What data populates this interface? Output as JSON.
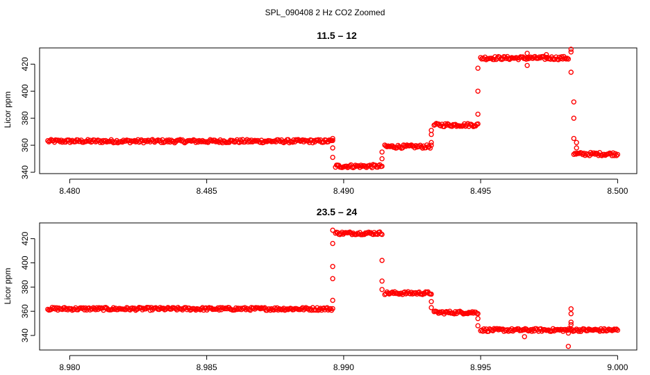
{
  "page_title": "SPL_090408  2 Hz CO2 Zoomed",
  "colors": {
    "points": "#ff0000",
    "axes": "#000000",
    "background": "#ffffff"
  },
  "chart_data": [
    {
      "type": "scatter",
      "title": "11.5 – 12",
      "xlabel": "",
      "ylabel": "Licor ppm",
      "xlim": [
        8.479,
        8.5
      ],
      "ylim": [
        340,
        432
      ],
      "x_ticks": [
        8.48,
        8.485,
        8.49,
        8.495,
        8.5
      ],
      "x_tick_labels": [
        "8.480",
        "8.485",
        "8.490",
        "8.495",
        "8.500"
      ],
      "y_ticks": [
        340,
        360,
        380,
        400,
        420
      ],
      "y_tick_labels": [
        "340",
        "360",
        "380",
        "400",
        "420"
      ],
      "grid": false,
      "segments": [
        {
          "x_start": 8.4792,
          "x_end": 8.4896,
          "y": 363
        },
        {
          "x_start": 8.4897,
          "x_end": 8.4914,
          "y": 344.5
        },
        {
          "x_start": 8.4915,
          "x_end": 8.4932,
          "y": 359
        },
        {
          "x_start": 8.4933,
          "x_end": 8.4949,
          "y": 375
        },
        {
          "x_start": 8.495,
          "x_end": 8.4982,
          "y": 424.5
        },
        {
          "x_start": 8.4984,
          "x_end": 8.5,
          "y": 353.5
        }
      ],
      "transition_points": [
        {
          "x": 8.4896,
          "y": 365
        },
        {
          "x": 8.4896,
          "y": 358
        },
        {
          "x": 8.4896,
          "y": 351
        },
        {
          "x": 8.4914,
          "y": 350
        },
        {
          "x": 8.4914,
          "y": 355
        },
        {
          "x": 8.4932,
          "y": 362
        },
        {
          "x": 8.4932,
          "y": 368
        },
        {
          "x": 8.4932,
          "y": 371
        },
        {
          "x": 8.4949,
          "y": 383
        },
        {
          "x": 8.4949,
          "y": 400
        },
        {
          "x": 8.4949,
          "y": 417
        },
        {
          "x": 8.4967,
          "y": 419
        },
        {
          "x": 8.4967,
          "y": 428
        },
        {
          "x": 8.4974,
          "y": 427
        },
        {
          "x": 8.4983,
          "y": 431
        },
        {
          "x": 8.4983,
          "y": 429
        },
        {
          "x": 8.4983,
          "y": 414
        },
        {
          "x": 8.4984,
          "y": 392
        },
        {
          "x": 8.4984,
          "y": 380
        },
        {
          "x": 8.4984,
          "y": 365
        },
        {
          "x": 8.4985,
          "y": 362
        },
        {
          "x": 8.4985,
          "y": 358
        }
      ]
    },
    {
      "type": "scatter",
      "title": "23.5 – 24",
      "xlabel": "",
      "ylabel": "Licor ppm",
      "xlim": [
        8.979,
        9.0
      ],
      "ylim": [
        330,
        432
      ],
      "x_ticks": [
        8.98,
        8.985,
        8.99,
        8.995,
        9.0
      ],
      "x_tick_labels": [
        "8.980",
        "8.985",
        "8.990",
        "8.995",
        "9.000"
      ],
      "y_ticks": [
        340,
        360,
        380,
        400,
        420
      ],
      "y_tick_labels": [
        "340",
        "360",
        "380",
        "400",
        "420"
      ],
      "grid": false,
      "segments": [
        {
          "x_start": 8.9792,
          "x_end": 8.9896,
          "y": 362
        },
        {
          "x_start": 8.9897,
          "x_end": 8.9914,
          "y": 424.5
        },
        {
          "x_start": 8.9915,
          "x_end": 8.9932,
          "y": 375
        },
        {
          "x_start": 8.9933,
          "x_end": 8.9949,
          "y": 359
        },
        {
          "x_start": 8.995,
          "x_end": 9.0,
          "y": 344.5
        }
      ],
      "transition_points": [
        {
          "x": 8.9896,
          "y": 369
        },
        {
          "x": 8.9896,
          "y": 387
        },
        {
          "x": 8.9896,
          "y": 397
        },
        {
          "x": 8.9896,
          "y": 416
        },
        {
          "x": 8.9896,
          "y": 427
        },
        {
          "x": 8.9914,
          "y": 402
        },
        {
          "x": 8.9914,
          "y": 385
        },
        {
          "x": 8.9914,
          "y": 378
        },
        {
          "x": 8.9932,
          "y": 368
        },
        {
          "x": 8.9932,
          "y": 363
        },
        {
          "x": 8.9949,
          "y": 354
        },
        {
          "x": 8.9949,
          "y": 348
        },
        {
          "x": 8.9966,
          "y": 339
        },
        {
          "x": 8.9983,
          "y": 362
        },
        {
          "x": 8.9983,
          "y": 358
        },
        {
          "x": 8.9983,
          "y": 351
        },
        {
          "x": 8.9983,
          "y": 349
        },
        {
          "x": 8.9982,
          "y": 342
        },
        {
          "x": 8.9982,
          "y": 331
        }
      ]
    }
  ]
}
